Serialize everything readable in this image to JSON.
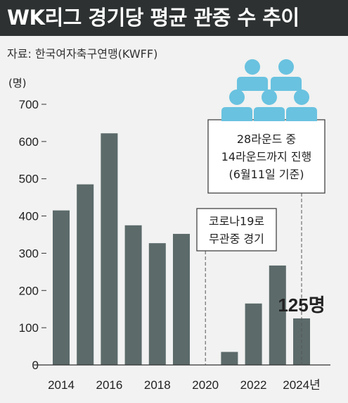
{
  "title": "WK리그 경기당 평균 관중 수 추이",
  "source": "자료: 한국여자축구연맹(KWFF)",
  "colors": {
    "bar": "#5c6a6a",
    "title_bg": "#2d3131",
    "background": "#f1f2f1",
    "people_icon": "#69c2e0",
    "box_border": "#444444"
  },
  "chart_data": {
    "type": "bar",
    "title": "WK리그 경기당 평균 관중 수 추이",
    "ylabel": "(명)",
    "xlabel": "",
    "ylim": [
      0,
      700
    ],
    "yticks": [
      0,
      100,
      200,
      300,
      400,
      500,
      600,
      700
    ],
    "xtick_labels": [
      "2014",
      "2016",
      "2018",
      "2020",
      "2022",
      "2024년"
    ],
    "categories": [
      "2014",
      "2015",
      "2016",
      "2017",
      "2018",
      "2019",
      "2020",
      "2021",
      "2022",
      "2023",
      "2024"
    ],
    "values": [
      415,
      485,
      622,
      375,
      327,
      352,
      null,
      35,
      165,
      267,
      125
    ],
    "grid": false,
    "legend": "none",
    "annotations": [
      {
        "target": "2020",
        "lines": [
          "코로나19로",
          "무관중 경기"
        ]
      },
      {
        "target": "2024",
        "lines": [
          "28라운드 중",
          "14라운드까지 진행",
          "(6월11일 기준)"
        ]
      }
    ],
    "data_labels": [
      {
        "category": "2024",
        "text": "125명"
      }
    ]
  }
}
